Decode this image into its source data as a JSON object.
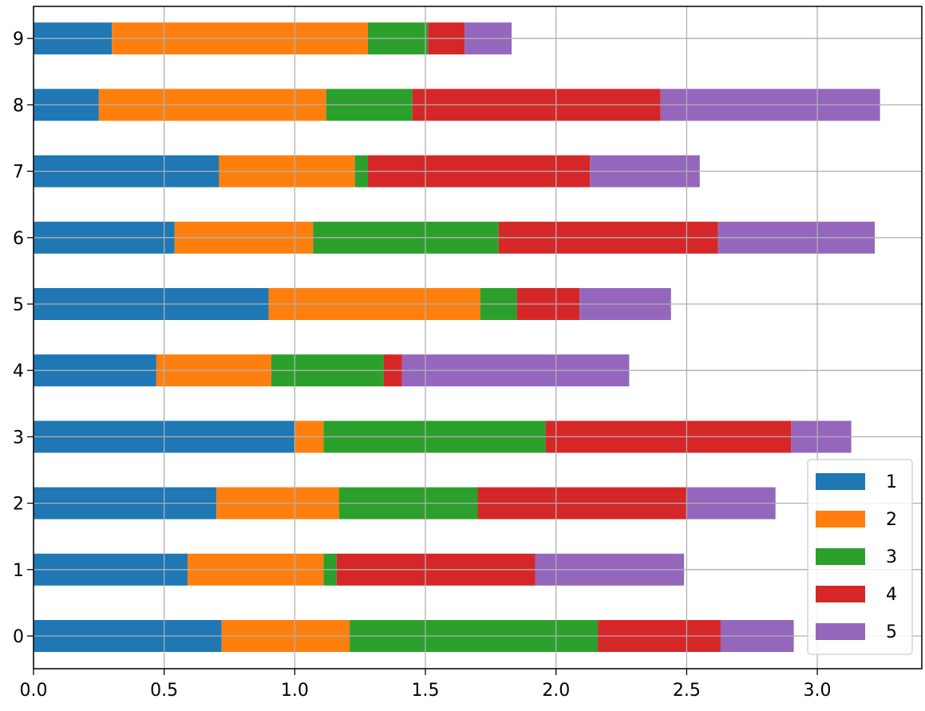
{
  "chart_data": {
    "type": "bar",
    "orientation": "horizontal",
    "stacked": true,
    "title": "",
    "xlabel": "",
    "ylabel": "",
    "categories": [
      "0",
      "1",
      "2",
      "3",
      "4",
      "5",
      "6",
      "7",
      "8",
      "9"
    ],
    "series": [
      {
        "name": "1",
        "color": "#1f77b4",
        "values": [
          0.72,
          0.59,
          0.7,
          1.0,
          0.47,
          0.9,
          0.54,
          0.71,
          0.25,
          0.3
        ]
      },
      {
        "name": "2",
        "color": "#ff7f0e",
        "values": [
          0.49,
          0.52,
          0.47,
          0.11,
          0.44,
          0.81,
          0.53,
          0.52,
          0.87,
          0.98
        ]
      },
      {
        "name": "3",
        "color": "#2ca02c",
        "values": [
          0.95,
          0.05,
          0.53,
          0.85,
          0.43,
          0.14,
          0.71,
          0.05,
          0.33,
          0.23
        ]
      },
      {
        "name": "4",
        "color": "#d62728",
        "values": [
          0.47,
          0.76,
          0.8,
          0.94,
          0.07,
          0.24,
          0.84,
          0.85,
          0.95,
          0.14
        ]
      },
      {
        "name": "5",
        "color": "#9467bd",
        "values": [
          0.28,
          0.57,
          0.34,
          0.23,
          0.87,
          0.35,
          0.6,
          0.42,
          0.84,
          0.18
        ]
      }
    ],
    "xlim": [
      0,
      3.4
    ],
    "xticks": [
      "0.0",
      "0.5",
      "1.0",
      "1.5",
      "2.0",
      "2.5",
      "3.0"
    ],
    "grid": true,
    "legend_position": "lower-right"
  }
}
